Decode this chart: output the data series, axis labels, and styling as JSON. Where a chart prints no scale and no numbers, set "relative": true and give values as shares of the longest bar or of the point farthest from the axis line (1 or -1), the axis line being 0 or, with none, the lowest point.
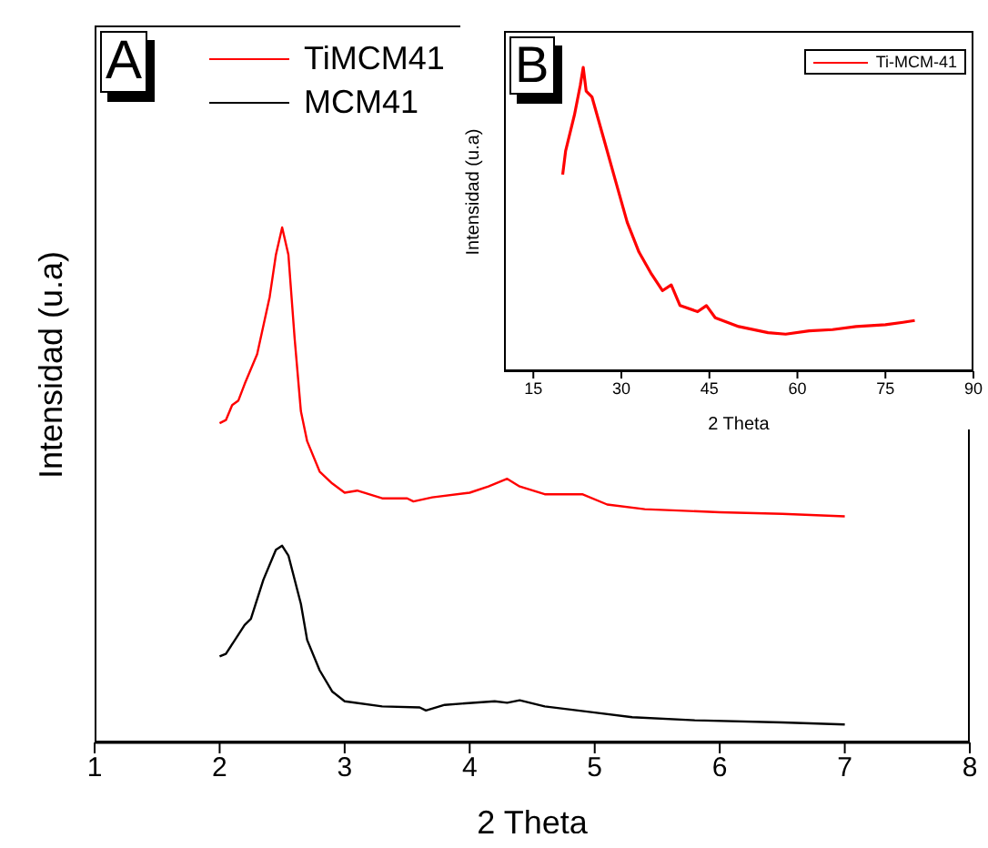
{
  "chart_data": [
    {
      "type": "line",
      "xlabel": "2 Theta",
      "ylabel": "Intensidad (u.a)",
      "annotations": [
        "A"
      ],
      "relative": true,
      "xlim": [
        1,
        8
      ],
      "xticks": [
        1,
        2,
        3,
        4,
        5,
        6,
        7,
        8
      ],
      "tick_labels": "x",
      "legend": "top left",
      "grid": false,
      "marker": "none",
      "line_style": "solid",
      "series": [
        {
          "name": "TiMCM41",
          "color": "#ff0000",
          "x": [
            2.0,
            2.05,
            2.1,
            2.15,
            2.2,
            2.3,
            2.4,
            2.45,
            2.5,
            2.55,
            2.6,
            2.65,
            2.7,
            2.8,
            2.9,
            3.0,
            3.1,
            3.3,
            3.5,
            3.55,
            3.7,
            4.0,
            4.15,
            4.3,
            4.4,
            4.6,
            4.9,
            5.1,
            5.4,
            6.0,
            6.5,
            7.0
          ],
          "values": [
            0.62,
            0.626,
            0.655,
            0.664,
            0.696,
            0.754,
            0.865,
            0.947,
            1.0,
            0.947,
            0.784,
            0.643,
            0.585,
            0.526,
            0.503,
            0.485,
            0.489,
            0.474,
            0.474,
            0.468,
            0.476,
            0.485,
            0.497,
            0.512,
            0.497,
            0.482,
            0.482,
            0.462,
            0.453,
            0.447,
            0.444,
            0.439
          ]
        },
        {
          "name": "MCM41",
          "color": "#000000",
          "x": [
            2.0,
            2.05,
            2.2,
            2.25,
            2.35,
            2.45,
            2.5,
            2.55,
            2.65,
            2.7,
            2.8,
            2.9,
            3.0,
            3.3,
            3.6,
            3.65,
            3.8,
            4.2,
            4.3,
            4.4,
            4.6,
            5.0,
            5.3,
            5.8,
            6.5,
            7.0
          ],
          "values": [
            0.167,
            0.172,
            0.228,
            0.24,
            0.316,
            0.374,
            0.382,
            0.363,
            0.269,
            0.199,
            0.14,
            0.099,
            0.08,
            0.07,
            0.068,
            0.062,
            0.073,
            0.08,
            0.077,
            0.082,
            0.07,
            0.058,
            0.049,
            0.043,
            0.039,
            0.035
          ]
        }
      ]
    },
    {
      "type": "line",
      "xlabel": "2 Theta",
      "ylabel": "Intensidad (u.a)",
      "annotations": [
        "B"
      ],
      "relative": true,
      "xlim": [
        10,
        90
      ],
      "xticks": [
        15,
        30,
        45,
        60,
        75,
        90
      ],
      "tick_labels": "x",
      "legend": "top right",
      "grid": false,
      "marker": "none",
      "line_style": "solid",
      "series": [
        {
          "name": "Ti-MCM-41",
          "color": "#ff0000",
          "x": [
            20,
            20.5,
            22,
            23,
            23.5,
            24,
            25,
            27,
            29,
            31,
            33,
            35,
            37,
            38.5,
            40,
            43,
            44.5,
            46,
            50,
            55,
            58,
            62,
            66,
            70,
            75,
            78,
            80
          ],
          "values": [
            0.647,
            0.725,
            0.843,
            0.941,
            1.0,
            0.922,
            0.902,
            0.765,
            0.627,
            0.49,
            0.392,
            0.324,
            0.265,
            0.284,
            0.216,
            0.196,
            0.216,
            0.176,
            0.147,
            0.127,
            0.122,
            0.133,
            0.137,
            0.147,
            0.153,
            0.161,
            0.167
          ]
        }
      ]
    }
  ]
}
